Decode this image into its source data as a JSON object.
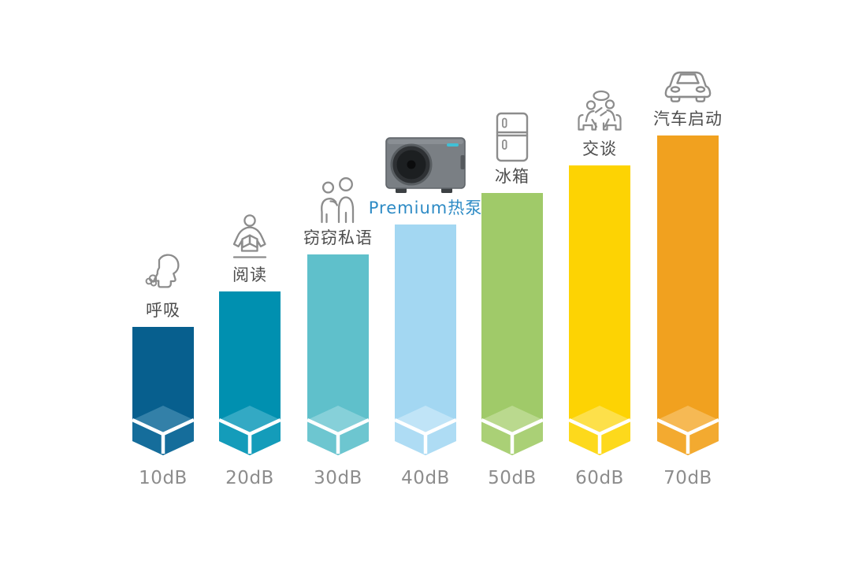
{
  "page": {
    "background": "#ffffff",
    "description_labels": {
      "unit": "dB"
    }
  },
  "chart_data": {
    "type": "bar",
    "title": "",
    "xlabel": "",
    "ylabel": "",
    "grid": false,
    "legend_position": "none",
    "categories": [
      "10dB",
      "20dB",
      "30dB",
      "40dB",
      "50dB",
      "60dB",
      "70dB"
    ],
    "values": [
      10,
      20,
      30,
      40,
      50,
      60,
      70
    ],
    "axis_label_color": "#8d8d8d",
    "icon_color": "#8c8c8c",
    "cube_line_color": "#ffffff",
    "highlight_text_color": "#2e8bc5",
    "bars": [
      {
        "db_label": "10dB",
        "activity": "呼吸",
        "icon": "breathing-icon",
        "color": "#075f8e",
        "diamond": "#3380a8",
        "face": "#156d9b",
        "label_color": "#4d4d4d"
      },
      {
        "db_label": "20dB",
        "activity": "阅读",
        "icon": "reading-icon",
        "color": "#0090b0",
        "diamond": "#33a9c4",
        "face": "#149cba",
        "label_color": "#4d4d4d"
      },
      {
        "db_label": "30dB",
        "activity": "窃窃私语",
        "icon": "whisper-icon",
        "color": "#5fc0cb",
        "diamond": "#86d0d9",
        "face": "#6dc6d0",
        "label_color": "#4d4d4d"
      },
      {
        "db_label": "40dB",
        "activity": "Premium热泵",
        "icon": "heat-pump-image",
        "color": "#a3d7f2",
        "diamond": "#c0e4f7",
        "face": "#aedcf4",
        "label_color": "#2e8bc5"
      },
      {
        "db_label": "50dB",
        "activity": "冰箱",
        "icon": "fridge-icon",
        "color": "#a0ca69",
        "diamond": "#bad98e",
        "face": "#aad076",
        "label_color": "#4d4d4d"
      },
      {
        "db_label": "60dB",
        "activity": "交谈",
        "icon": "conversation-icon",
        "color": "#fdd303",
        "diamond": "#fde04a",
        "face": "#fdd91c",
        "label_color": "#4d4d4d"
      },
      {
        "db_label": "70dB",
        "activity": "汽车启动",
        "icon": "car-icon",
        "color": "#f1a11f",
        "diamond": "#f6b954",
        "face": "#f3aa30",
        "label_color": "#4d4d4d"
      }
    ]
  }
}
